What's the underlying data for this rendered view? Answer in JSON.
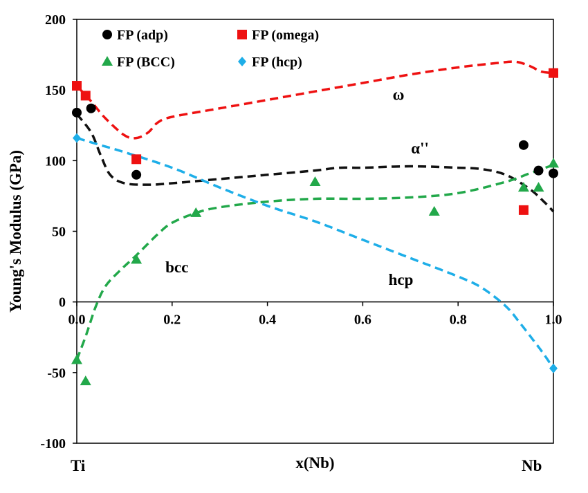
{
  "chart_data": {
    "type": "scatter",
    "xlabel": "x(Nb)",
    "ylabel": "Young's Modulus (GPa)",
    "xlim": [
      0.0,
      1.0
    ],
    "ylim": [
      -100,
      200
    ],
    "x_ticks": [
      "0.0",
      "0.2",
      "0.4",
      "0.6",
      "0.8",
      "1.0"
    ],
    "y_ticks": [
      "200",
      "150",
      "100",
      "50",
      "0",
      "-50",
      "-100"
    ],
    "x_end_labels": {
      "left": "Ti",
      "right": "Nb"
    },
    "legend_position": "top",
    "series": [
      {
        "name": "FP (adp)",
        "marker": "circle",
        "color": "#000000",
        "points": [
          [
            0.0,
            134
          ],
          [
            0.03,
            137
          ],
          [
            0.125,
            90
          ],
          [
            0.9375,
            111
          ],
          [
            0.9688,
            93
          ],
          [
            1.0,
            91
          ]
        ]
      },
      {
        "name": "FP (omega)",
        "marker": "square",
        "color": "#ee1111",
        "points": [
          [
            0.0,
            153
          ],
          [
            0.0185,
            146
          ],
          [
            0.125,
            101
          ],
          [
            0.9375,
            65
          ],
          [
            1.0,
            162
          ]
        ]
      },
      {
        "name": "FP (BCC)",
        "marker": "triangle",
        "color": "#22a84a",
        "points": [
          [
            0.0,
            -41
          ],
          [
            0.0185,
            -56
          ],
          [
            0.125,
            30
          ],
          [
            0.25,
            63
          ],
          [
            0.5,
            85
          ],
          [
            0.75,
            64
          ],
          [
            0.9375,
            81
          ],
          [
            0.9688,
            81
          ],
          [
            1.0,
            98
          ]
        ]
      },
      {
        "name": "FP (hcp)",
        "marker": "diamond",
        "color": "#1eaee8",
        "points": [
          [
            0.0,
            116
          ],
          [
            1.0,
            -47
          ]
        ]
      }
    ],
    "fit_curves": [
      {
        "label": "ω",
        "color": "#ee1111",
        "points": [
          [
            0.0,
            153
          ],
          [
            0.03,
            142
          ],
          [
            0.06,
            130
          ],
          [
            0.1,
            118
          ],
          [
            0.125,
            116
          ],
          [
            0.15,
            120
          ],
          [
            0.17,
            127
          ],
          [
            0.2,
            131
          ],
          [
            0.3,
            137
          ],
          [
            0.4,
            143
          ],
          [
            0.5,
            149
          ],
          [
            0.6,
            155
          ],
          [
            0.7,
            161
          ],
          [
            0.8,
            166
          ],
          [
            0.88,
            169
          ],
          [
            0.92,
            170
          ],
          [
            0.95,
            167
          ],
          [
            0.975,
            163
          ],
          [
            1.0,
            162
          ]
        ]
      },
      {
        "label": "α''",
        "color": "#111111",
        "points": [
          [
            0.0,
            133
          ],
          [
            0.03,
            120
          ],
          [
            0.05,
            104
          ],
          [
            0.07,
            90
          ],
          [
            0.1,
            84
          ],
          [
            0.15,
            83
          ],
          [
            0.2,
            84
          ],
          [
            0.3,
            87
          ],
          [
            0.4,
            90
          ],
          [
            0.5,
            93
          ],
          [
            0.55,
            95
          ],
          [
            0.6,
            95
          ],
          [
            0.7,
            96
          ],
          [
            0.8,
            95
          ],
          [
            0.85,
            94
          ],
          [
            0.9,
            90
          ],
          [
            0.95,
            80
          ],
          [
            0.98,
            71
          ],
          [
            1.0,
            64
          ]
        ]
      },
      {
        "label": "bcc",
        "color": "#22a84a",
        "points": [
          [
            0.0,
            -41
          ],
          [
            0.02,
            -23
          ],
          [
            0.04,
            -3
          ],
          [
            0.06,
            11
          ],
          [
            0.09,
            22
          ],
          [
            0.125,
            33
          ],
          [
            0.17,
            48
          ],
          [
            0.2,
            56
          ],
          [
            0.25,
            63
          ],
          [
            0.3,
            67
          ],
          [
            0.4,
            71
          ],
          [
            0.5,
            73
          ],
          [
            0.6,
            73
          ],
          [
            0.7,
            74
          ],
          [
            0.8,
            77
          ],
          [
            0.9,
            85
          ],
          [
            0.95,
            91
          ],
          [
            1.0,
            97
          ]
        ]
      },
      {
        "label": "hcp",
        "color": "#1eaee8",
        "points": [
          [
            0.0,
            116
          ],
          [
            0.05,
            111
          ],
          [
            0.1,
            106
          ],
          [
            0.2,
            95
          ],
          [
            0.3,
            81
          ],
          [
            0.4,
            68
          ],
          [
            0.5,
            57
          ],
          [
            0.6,
            44
          ],
          [
            0.7,
            31
          ],
          [
            0.8,
            18
          ],
          [
            0.85,
            10
          ],
          [
            0.9,
            -3
          ],
          [
            0.93,
            -15
          ],
          [
            0.96,
            -28
          ],
          [
            0.98,
            -37
          ],
          [
            1.0,
            -47
          ]
        ]
      }
    ],
    "annotations": [
      "ω",
      "α''",
      "bcc",
      "hcp"
    ]
  }
}
